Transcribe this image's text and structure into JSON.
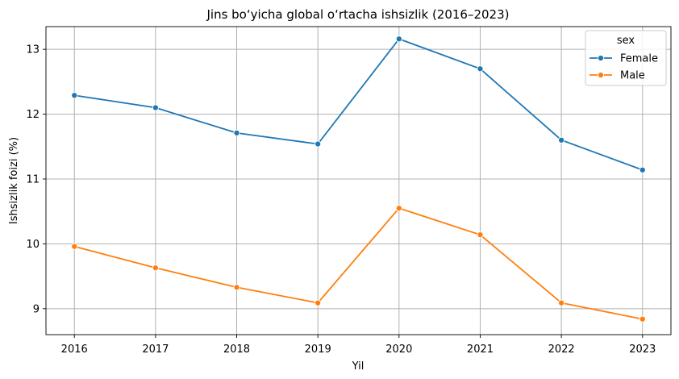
{
  "chart_data": {
    "type": "line",
    "title": "Jins bo‘yicha global o‘rtacha ishsizlik (2016–2023)",
    "xlabel": "Yil",
    "ylabel": "Ishsizlik foizi (%)",
    "x": [
      2016,
      2017,
      2018,
      2019,
      2020,
      2021,
      2022,
      2023
    ],
    "xlim": [
      2015.65,
      2023.35
    ],
    "ylim": [
      8.6,
      13.35
    ],
    "yticks": [
      9,
      10,
      11,
      12,
      13
    ],
    "grid": true,
    "legend": {
      "title": "sex",
      "placement": "top-right"
    },
    "series": [
      {
        "name": "Female",
        "color": "#1f77b4",
        "marker": "circle",
        "values": [
          12.29,
          12.1,
          11.71,
          11.54,
          13.16,
          12.7,
          11.6,
          11.14
        ]
      },
      {
        "name": "Male",
        "color": "#ff7f0e",
        "marker": "circle",
        "values": [
          9.96,
          9.63,
          9.33,
          9.09,
          10.55,
          10.14,
          9.09,
          8.84
        ]
      }
    ]
  }
}
